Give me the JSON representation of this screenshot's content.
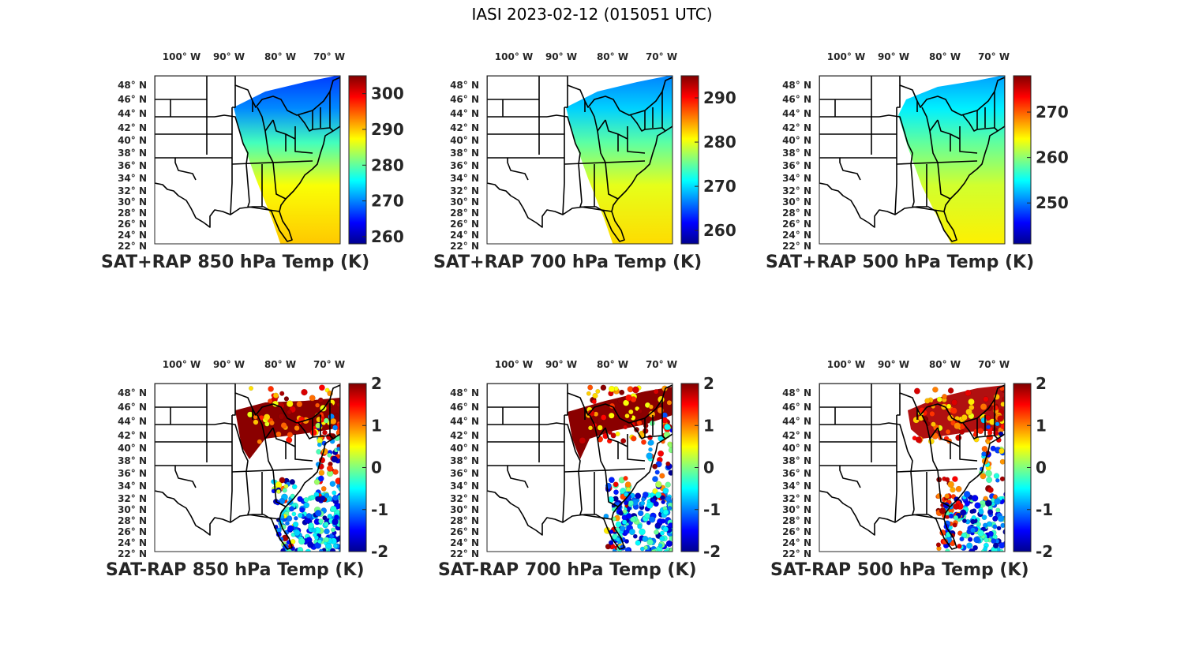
{
  "figure_title": "IASI 2023-02-12 (015051 UTC)",
  "lon_ticks": [
    {
      "deg": "100",
      "hem": "W"
    },
    {
      "deg": "90",
      "hem": "W"
    },
    {
      "deg": "80",
      "hem": "W"
    },
    {
      "deg": "70",
      "hem": "W"
    }
  ],
  "lat_ticks": [
    {
      "deg": "48",
      "hem": "N"
    },
    {
      "deg": "46",
      "hem": "N"
    },
    {
      "deg": "44",
      "hem": "N"
    },
    {
      "deg": "42",
      "hem": "N"
    },
    {
      "deg": "40",
      "hem": "N"
    },
    {
      "deg": "38",
      "hem": "N"
    },
    {
      "deg": "36",
      "hem": "N"
    },
    {
      "deg": "34",
      "hem": "N"
    },
    {
      "deg": "32",
      "hem": "N"
    },
    {
      "deg": "30",
      "hem": "N"
    },
    {
      "deg": "28",
      "hem": "N"
    },
    {
      "deg": "26",
      "hem": "N"
    },
    {
      "deg": "24",
      "hem": "N"
    },
    {
      "deg": "22",
      "hem": "N"
    }
  ],
  "degree_symbol": "°",
  "colormap": [
    "#00008f",
    "#0000ff",
    "#0080ff",
    "#00ffff",
    "#80ff80",
    "#ffff00",
    "#ff8000",
    "#ff0000",
    "#800000"
  ],
  "chart_data": [
    {
      "type": "map",
      "title": "SAT+RAP 850 hPa Temp (K)",
      "field": "total",
      "level_hpa": 850,
      "cbar_range": [
        258,
        305
      ],
      "cbar_ticks": [
        260,
        270,
        280,
        290,
        300
      ]
    },
    {
      "type": "map",
      "title": "SAT+RAP 700 hPa Temp (K)",
      "field": "total",
      "level_hpa": 700,
      "cbar_range": [
        257,
        295
      ],
      "cbar_ticks": [
        260,
        270,
        280,
        290
      ]
    },
    {
      "type": "map",
      "title": "SAT+RAP 500 hPa Temp (K)",
      "field": "total",
      "level_hpa": 500,
      "cbar_range": [
        241,
        278
      ],
      "cbar_ticks": [
        250,
        260,
        270
      ]
    },
    {
      "type": "map",
      "title": "SAT-RAP 850 hPa Temp (K)",
      "field": "diff",
      "level_hpa": 850,
      "cbar_range": [
        -2,
        2
      ],
      "cbar_ticks": [
        -2,
        -1,
        0,
        1,
        2
      ]
    },
    {
      "type": "map",
      "title": "SAT-RAP 700 hPa Temp (K)",
      "field": "diff",
      "level_hpa": 700,
      "cbar_range": [
        -2,
        2
      ],
      "cbar_ticks": [
        -2,
        -1,
        0,
        1,
        2
      ]
    },
    {
      "type": "map",
      "title": "SAT-RAP 500 hPa Temp (K)",
      "field": "diff",
      "level_hpa": 500,
      "cbar_range": [
        -2,
        2
      ],
      "cbar_ticks": [
        -2,
        -1,
        0,
        1,
        2
      ]
    }
  ]
}
